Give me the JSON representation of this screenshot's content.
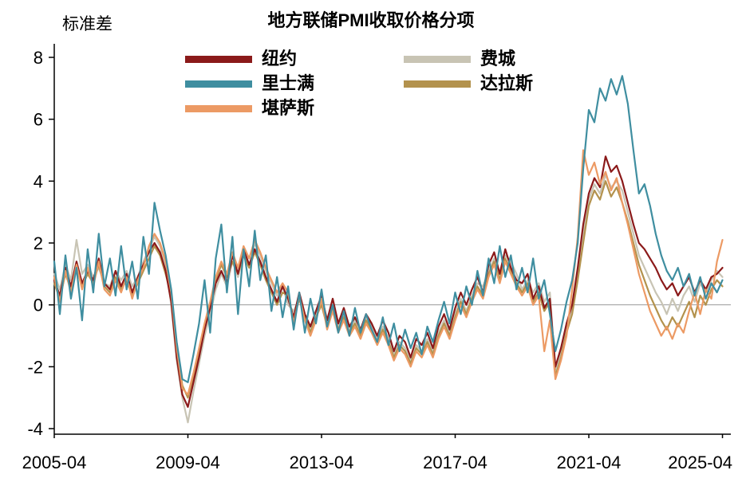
{
  "title": "地方联储PMI收取价格分项",
  "y_axis_label": "标准差",
  "chart_data": {
    "type": "line",
    "title": "地方联储PMI收取价格分项",
    "ylabel": "标准差",
    "xlabel": "",
    "ylim": [
      -4,
      8
    ],
    "xlim": [
      2005.25,
      2025.5
    ],
    "y_ticks": [
      8,
      6,
      4,
      2,
      0,
      -2,
      -4
    ],
    "x_ticks": [
      {
        "label": "2005-04",
        "x": 2005.25
      },
      {
        "label": "2009-04",
        "x": 2009.25
      },
      {
        "label": "2013-04",
        "x": 2013.25
      },
      {
        "label": "2017-04",
        "x": 2017.25
      },
      {
        "label": "2021-04",
        "x": 2021.25
      },
      {
        "label": "2025-04",
        "x": 2025.25
      }
    ],
    "x_start": 2005.25,
    "x_step_years": 0.1666667,
    "grid": false,
    "zero_line": true,
    "zero_line_color": "#9a9a9a",
    "axis_color": "#000000",
    "legend_position": "top-center",
    "series": [
      {
        "name": "纽约",
        "key": "new-york",
        "color": "#8b1a1a",
        "values": [
          0.8,
          0.3,
          1.2,
          0.6,
          1.4,
          0.7,
          1.1,
          0.8,
          1.5,
          0.7,
          0.5,
          1.1,
          0.6,
          1.0,
          0.4,
          0.9,
          1.3,
          1.7,
          2.0,
          1.7,
          1.1,
          0.1,
          -1.7,
          -2.9,
          -3.3,
          -2.5,
          -1.7,
          -0.8,
          -0.1,
          0.7,
          1.1,
          0.7,
          1.6,
          1.0,
          1.8,
          1.3,
          1.8,
          1.4,
          0.9,
          0.5,
          0.1,
          0.6,
          0.2,
          -0.4,
          0.4,
          -0.3,
          -0.7,
          -0.2,
          0.3,
          -0.5,
          0.2,
          -0.6,
          -0.1,
          -0.7,
          -0.4,
          -0.8,
          -0.3,
          -0.6,
          -1.0,
          -0.5,
          -0.9,
          -1.5,
          -1.0,
          -1.2,
          -1.7,
          -1.1,
          -1.3,
          -0.9,
          -1.4,
          -0.7,
          -0.3,
          -0.8,
          -0.1,
          0.4,
          0.0,
          0.5,
          0.9,
          0.4,
          1.3,
          1.7,
          1.0,
          1.8,
          1.2,
          0.8,
          0.7,
          1.0,
          0.2,
          0.6,
          -0.1,
          0.2,
          -2.0,
          -1.4,
          -0.6,
          0.0,
          1.2,
          2.6,
          3.6,
          4.1,
          3.8,
          4.8,
          4.3,
          4.5,
          4.0,
          3.3,
          2.6,
          2.0,
          1.8,
          1.5,
          1.2,
          0.8,
          0.5,
          0.7,
          0.3,
          0.6,
          0.9,
          0.4,
          0.8,
          0.5,
          0.9,
          1.0,
          1.2
        ]
      },
      {
        "name": "费城",
        "key": "philadelphia",
        "color": "#c8c4b4",
        "values": [
          1.0,
          0.5,
          1.3,
          0.8,
          2.1,
          1.0,
          1.3,
          0.9,
          1.2,
          0.7,
          0.6,
          1.1,
          0.8,
          1.1,
          0.6,
          0.9,
          1.4,
          1.8,
          2.2,
          1.9,
          1.3,
          0.0,
          -1.8,
          -3.0,
          -3.8,
          -2.8,
          -1.9,
          -1.0,
          -0.3,
          0.5,
          1.0,
          0.6,
          1.4,
          0.9,
          1.6,
          1.2,
          2.0,
          1.6,
          1.1,
          0.7,
          0.3,
          0.6,
          0.0,
          -0.2,
          0.2,
          -0.4,
          -0.8,
          -0.3,
          0.1,
          -0.6,
          0.0,
          -0.7,
          -0.3,
          -0.8,
          -0.5,
          -0.9,
          -0.4,
          -0.7,
          -1.1,
          -0.7,
          -1.1,
          -1.6,
          -1.2,
          -1.4,
          -1.8,
          -1.3,
          -1.5,
          -1.1,
          -1.5,
          -0.9,
          -0.5,
          -0.9,
          -0.3,
          0.2,
          -0.2,
          0.3,
          0.7,
          0.6,
          1.1,
          1.5,
          0.9,
          1.6,
          1.4,
          1.0,
          0.5,
          0.8,
          0.4,
          0.7,
          0.1,
          0.4,
          -2.1,
          -1.5,
          -0.7,
          -0.1,
          1.0,
          2.3,
          3.4,
          3.9,
          3.6,
          4.2,
          3.8,
          4.0,
          3.7,
          3.0,
          2.3,
          1.6,
          1.2,
          0.8,
          0.4,
          0.1,
          -0.3,
          0.2,
          -0.2,
          0.3,
          0.6,
          0.1,
          0.7,
          0.4,
          0.8,
          1.1,
          0.9
        ]
      },
      {
        "name": "里士满",
        "key": "richmond",
        "color": "#3f8ea0",
        "values": [
          1.4,
          -0.3,
          1.6,
          0.2,
          1.2,
          -0.5,
          1.8,
          0.4,
          2.3,
          0.6,
          1.5,
          0.3,
          1.9,
          0.5,
          1.4,
          0.2,
          2.2,
          1.0,
          3.3,
          2.4,
          1.6,
          0.5,
          -1.2,
          -2.4,
          -2.5,
          -1.6,
          -0.6,
          0.8,
          -0.9,
          1.5,
          2.6,
          0.4,
          2.2,
          -0.3,
          1.8,
          0.6,
          2.4,
          0.8,
          1.6,
          -0.2,
          0.9,
          -0.4,
          0.6,
          -0.8,
          0.4,
          -0.9,
          0.2,
          -0.6,
          0.5,
          -0.7,
          0.0,
          -0.9,
          -0.2,
          -1.0,
          -0.1,
          -0.9,
          -0.3,
          -0.8,
          -1.2,
          -0.4,
          -1.3,
          -0.6,
          -1.5,
          -0.8,
          -1.4,
          -0.9,
          -1.6,
          -0.7,
          -1.2,
          -0.5,
          0.1,
          -0.6,
          0.4,
          -0.3,
          0.6,
          0.0,
          1.1,
          0.3,
          1.5,
          0.7,
          1.9,
          0.9,
          1.6,
          0.5,
          1.2,
          0.4,
          1.5,
          0.2,
          0.8,
          -0.3,
          -1.5,
          -0.8,
          0.1,
          0.8,
          2.0,
          4.4,
          6.3,
          5.9,
          7.0,
          6.6,
          7.3,
          6.8,
          7.4,
          6.5,
          5.0,
          3.6,
          3.9,
          3.2,
          2.3,
          1.6,
          1.1,
          0.8,
          1.2,
          0.6,
          1.0,
          0.3,
          0.9,
          0.2,
          0.7,
          0.4,
          0.8
        ]
      },
      {
        "name": "达拉斯",
        "key": "dallas",
        "color": "#b3924d",
        "values": [
          0.7,
          0.2,
          1.0,
          0.5,
          1.2,
          0.6,
          1.0,
          0.7,
          1.3,
          0.6,
          0.4,
          0.9,
          0.5,
          0.8,
          0.3,
          0.7,
          1.1,
          1.5,
          1.9,
          1.6,
          1.0,
          0.3,
          -1.3,
          -2.6,
          -3.0,
          -2.3,
          -1.5,
          -0.7,
          0.0,
          0.8,
          1.3,
          0.9,
          1.4,
          1.0,
          1.6,
          1.2,
          1.7,
          1.3,
          0.8,
          0.4,
          0.0,
          0.4,
          0.3,
          -0.5,
          0.2,
          -0.4,
          -0.9,
          -0.4,
          0.0,
          -0.7,
          -0.1,
          -0.8,
          -0.4,
          -0.9,
          -0.6,
          -1.0,
          -0.5,
          -0.8,
          -1.2,
          -0.8,
          -1.2,
          -1.7,
          -1.3,
          -1.5,
          -1.9,
          -1.4,
          -1.6,
          -1.2,
          -1.6,
          -1.0,
          -0.6,
          -1.0,
          -0.4,
          0.1,
          -0.3,
          0.2,
          0.6,
          0.3,
          1.0,
          1.4,
          0.8,
          1.5,
          1.1,
          0.7,
          0.4,
          0.7,
          0.1,
          0.4,
          -0.2,
          0.1,
          -2.3,
          -1.7,
          -0.9,
          -0.3,
          0.8,
          2.0,
          3.2,
          3.7,
          3.4,
          4.0,
          3.5,
          3.8,
          3.3,
          2.7,
          2.0,
          1.3,
          0.8,
          0.3,
          -0.1,
          -0.5,
          -0.8,
          -0.4,
          -0.7,
          -0.3,
          0.1,
          -0.4,
          0.3,
          0.0,
          0.5,
          0.8,
          0.6
        ]
      },
      {
        "name": "堪萨斯",
        "key": "kansas",
        "color": "#ec9a64",
        "values": [
          0.9,
          0.1,
          1.1,
          0.4,
          1.3,
          0.5,
          1.2,
          0.6,
          1.4,
          0.5,
          0.3,
          0.8,
          0.4,
          0.9,
          0.2,
          0.8,
          1.2,
          1.9,
          2.3,
          2.0,
          1.4,
          0.4,
          -1.4,
          -2.7,
          -2.9,
          -2.2,
          -1.4,
          -0.6,
          0.1,
          0.9,
          1.4,
          1.0,
          1.7,
          1.2,
          1.9,
          1.5,
          2.1,
          1.7,
          1.2,
          0.8,
          0.4,
          0.7,
          0.4,
          -0.6,
          0.3,
          -0.5,
          -1.0,
          -0.5,
          0.2,
          -0.8,
          -0.2,
          -0.9,
          -0.5,
          -1.0,
          -0.7,
          -1.1,
          -0.6,
          -0.9,
          -1.3,
          -0.9,
          -1.3,
          -1.8,
          -1.4,
          -1.6,
          -2.0,
          -1.5,
          -1.7,
          -1.3,
          -1.7,
          -1.1,
          -0.7,
          -1.1,
          -0.5,
          0.0,
          -0.4,
          0.1,
          0.5,
          0.2,
          0.9,
          1.3,
          0.7,
          1.4,
          1.0,
          0.6,
          0.3,
          0.6,
          0.0,
          0.3,
          -1.5,
          -0.5,
          -2.4,
          -1.8,
          -1.0,
          0.5,
          2.2,
          5.0,
          4.2,
          4.6,
          3.9,
          4.3,
          3.7,
          4.1,
          3.3,
          2.6,
          1.8,
          1.0,
          0.4,
          -0.2,
          -0.6,
          -1.0,
          -0.7,
          -1.1,
          -0.6,
          -0.9,
          -0.2,
          0.4,
          -0.3,
          0.5,
          0.2,
          1.4,
          2.1
        ]
      }
    ]
  }
}
